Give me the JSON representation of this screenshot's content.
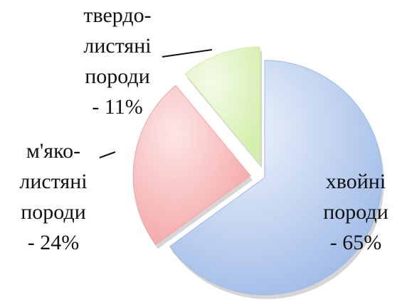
{
  "chart_data": {
    "type": "pie",
    "categories": [
      "хвойні породи",
      "м'яко-листяні породи",
      "твердо-листяні породи"
    ],
    "values": [
      65,
      24,
      11
    ],
    "value_labels": [
      "- 65%",
      "- 24%",
      "- 11%"
    ],
    "colors": [
      "#9db9e6",
      "#f3a3a3",
      "#d3eeaa"
    ],
    "exploded": [
      false,
      true,
      true
    ]
  }
}
